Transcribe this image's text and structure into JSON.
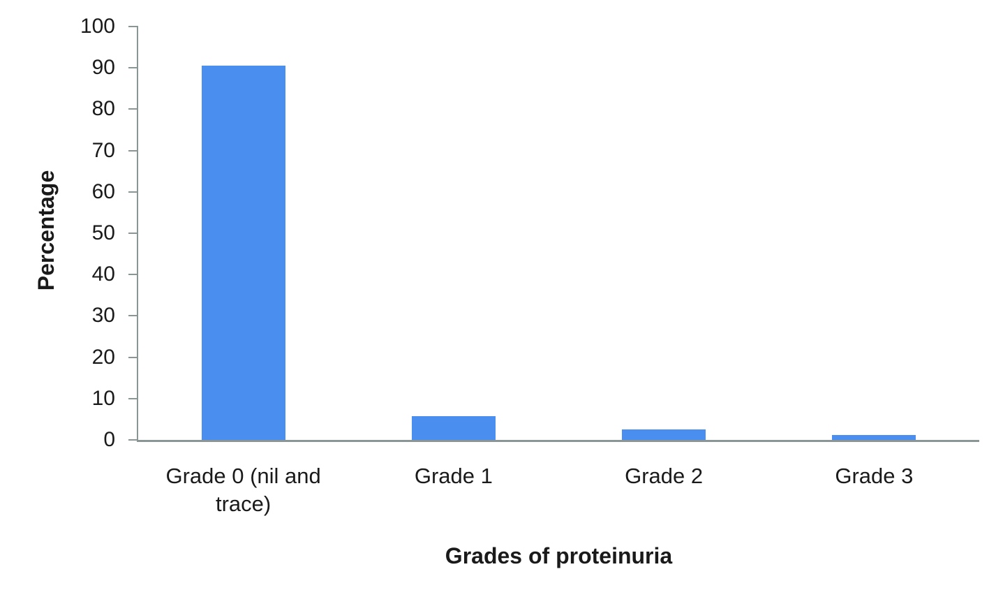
{
  "chart_data": {
    "type": "bar",
    "title": "",
    "categories": [
      "Grade 0 (nil and trace)",
      "Grade 1",
      "Grade 2",
      "Grade 3"
    ],
    "values": [
      90.5,
      5.7,
      2.5,
      1.2
    ],
    "xlabel": "Grades of proteinuria",
    "ylabel": "Percentage",
    "ylim": [
      0,
      100
    ],
    "ytick_step": 10,
    "ytick_labels": [
      "0",
      "10",
      "20",
      "30",
      "40",
      "50",
      "60",
      "70",
      "80",
      "90",
      "100"
    ],
    "legend": "none",
    "grid": "off",
    "bar_color": "#4a8fef",
    "axis_color": "#8a9596",
    "text_color": "#1a1a1a",
    "background_color": "#ffffff"
  }
}
